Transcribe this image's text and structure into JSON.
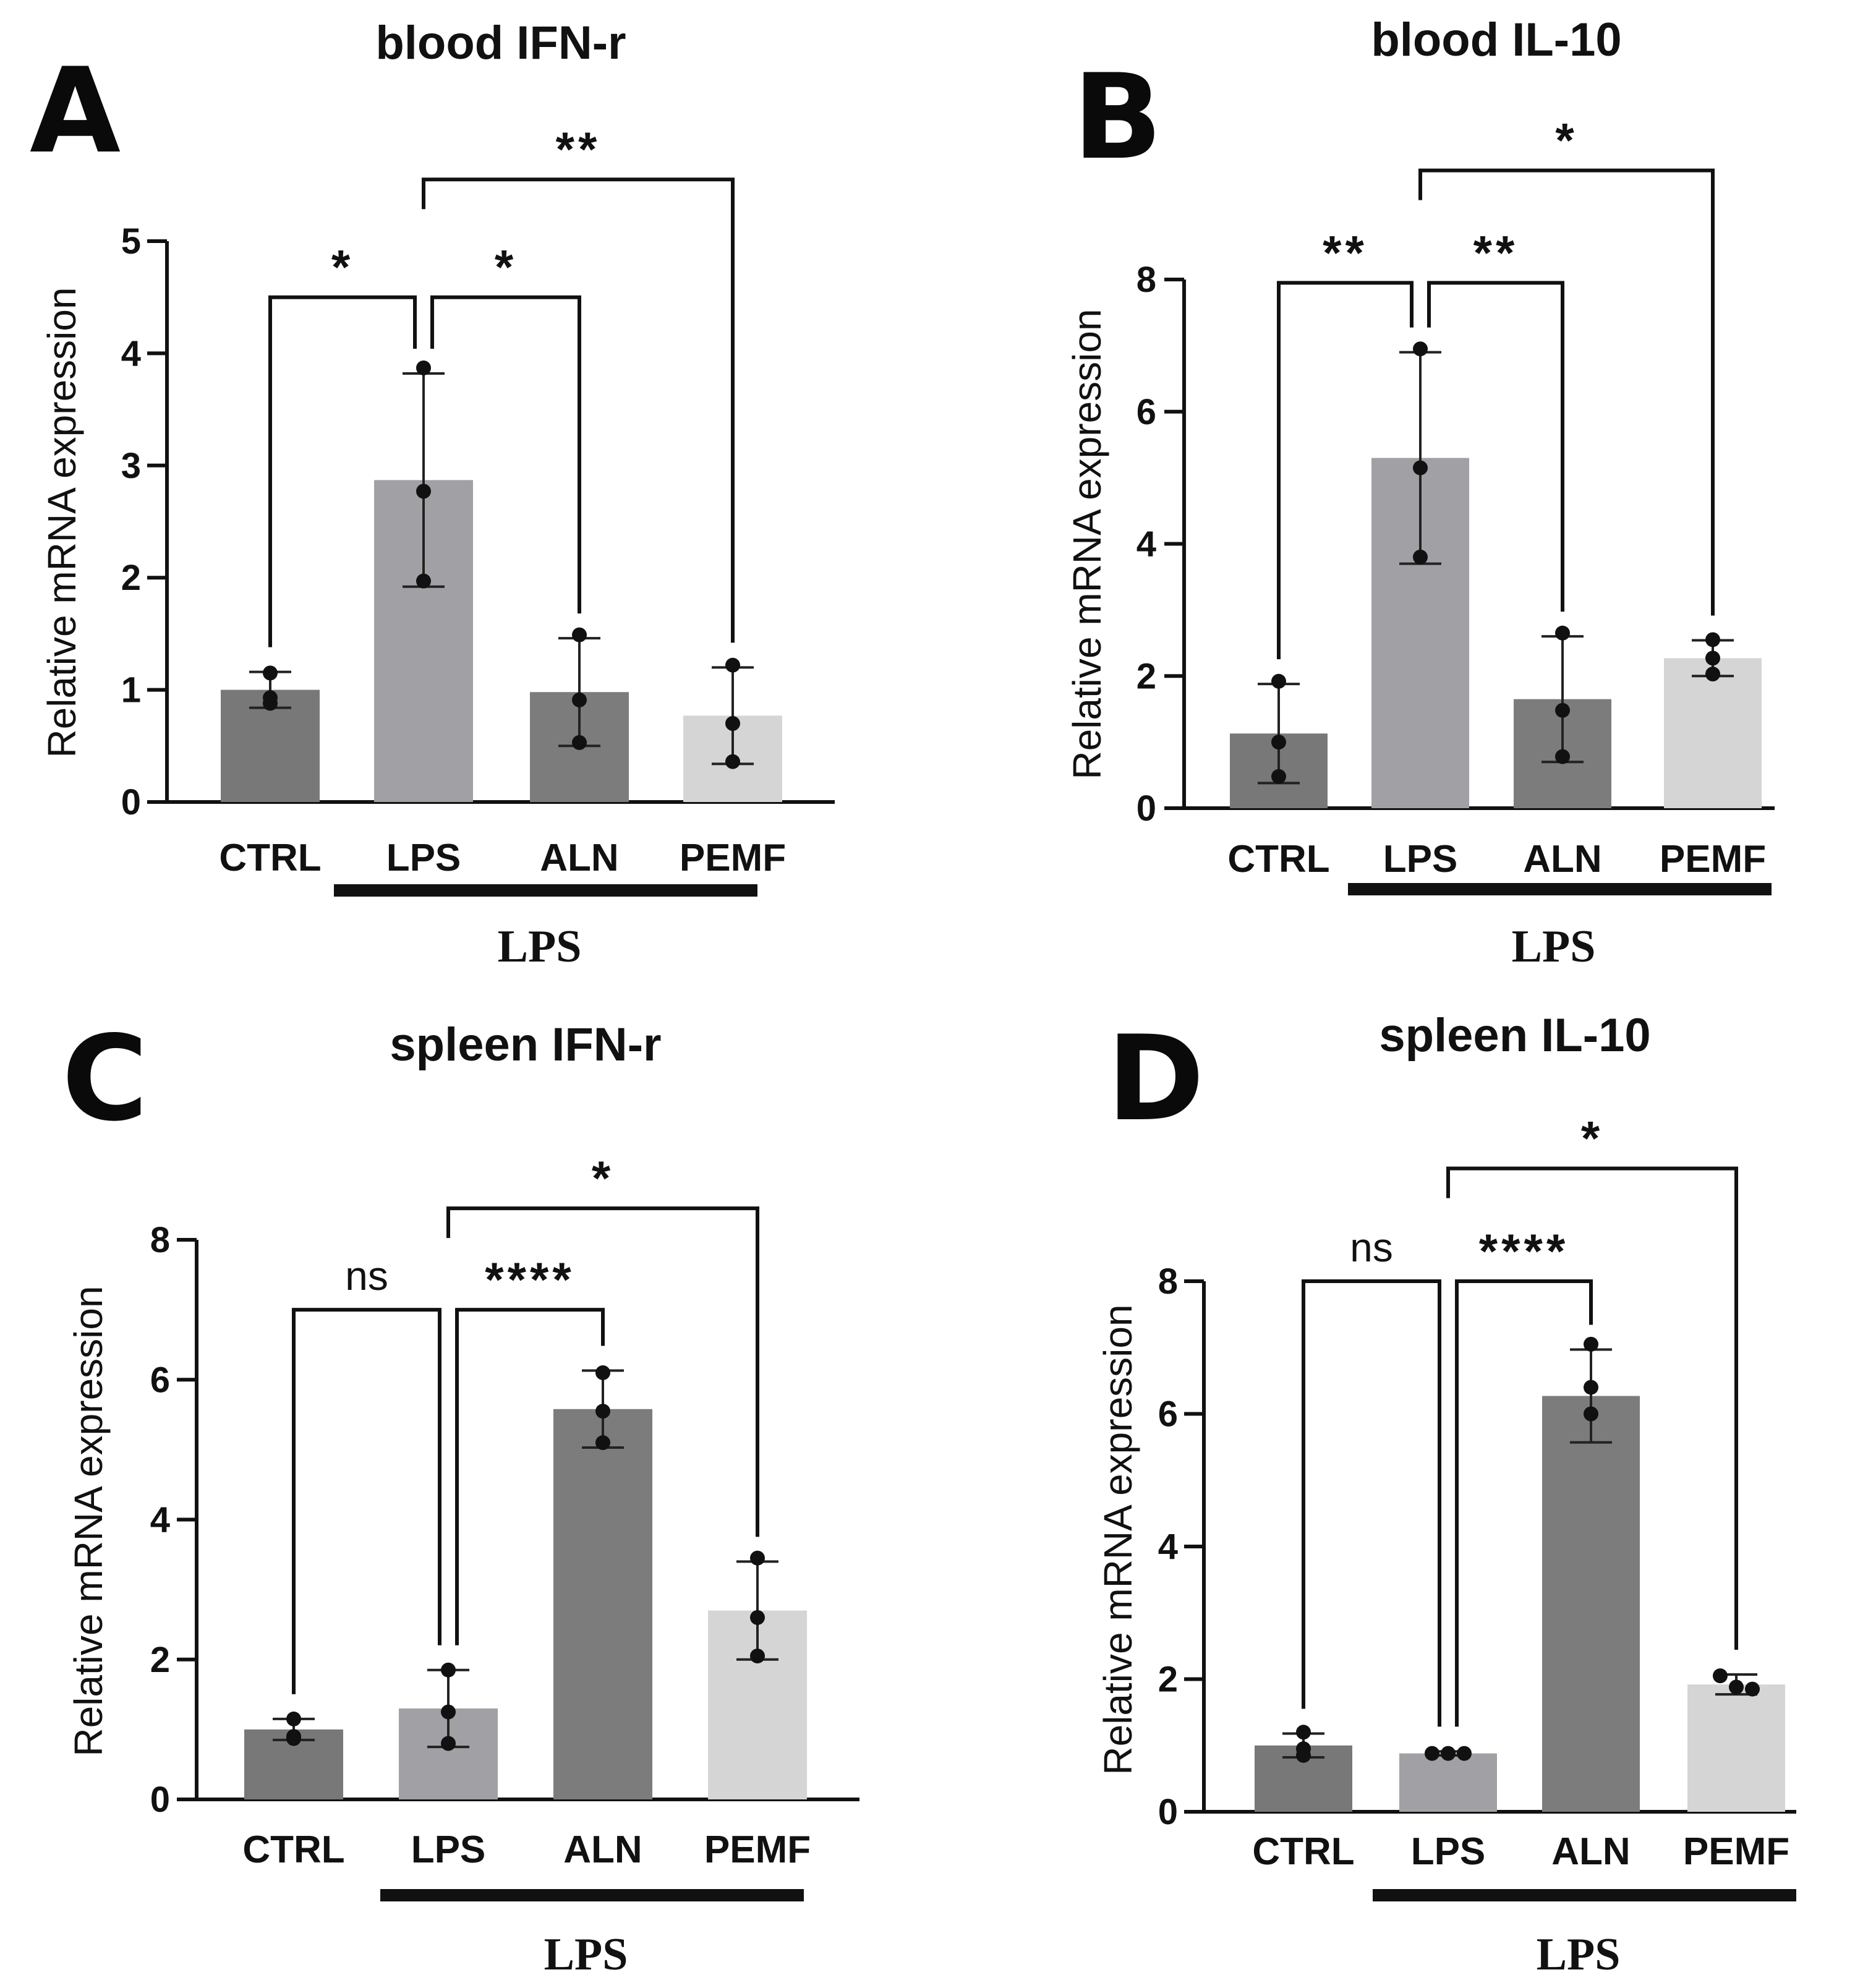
{
  "figure": {
    "y_axis_label": "Relative mRNA expression",
    "group_label": "LPS"
  },
  "chart_data": [
    {
      "type": "bar",
      "panel": "A",
      "title": "blood IFN-r",
      "xlabel": "",
      "ylabel": "Relative mRNA expression",
      "ylim": [
        0,
        5
      ],
      "yticks": [
        0,
        1,
        2,
        3,
        4,
        5
      ],
      "categories": [
        "CTRL",
        "LPS",
        "ALN",
        "PEMF"
      ],
      "values": [
        1.0,
        2.87,
        0.98,
        0.77
      ],
      "sd": [
        0.16,
        0.95,
        0.48,
        0.43
      ],
      "points": [
        [
          1.15,
          0.93,
          0.88
        ],
        [
          3.87,
          2.77,
          1.97
        ],
        [
          1.49,
          0.91,
          0.53
        ],
        [
          1.22,
          0.7,
          0.36
        ]
      ],
      "colors": [
        "#787878",
        "#a1a1a5",
        "#7c7c7c",
        "#d5d5d5"
      ],
      "group_label": "LPS",
      "comparisons": [
        {
          "from": "CTRL",
          "to": "LPS",
          "label": "*",
          "level": 4.5
        },
        {
          "from": "LPS",
          "to": "ALN",
          "label": "*",
          "level": 4.5
        },
        {
          "from": "LPS",
          "to": "PEMF",
          "label": "**",
          "level": 5.55
        }
      ]
    },
    {
      "type": "bar",
      "panel": "B",
      "title": "blood IL-10",
      "xlabel": "",
      "ylabel": "Relative mRNA expression",
      "ylim": [
        0,
        8
      ],
      "yticks": [
        0,
        2,
        4,
        6,
        8
      ],
      "categories": [
        "CTRL",
        "LPS",
        "ALN",
        "PEMF"
      ],
      "values": [
        1.13,
        5.3,
        1.65,
        2.27
      ],
      "sd": [
        0.75,
        1.6,
        0.95,
        0.27
      ],
      "points": [
        [
          1.92,
          1.0,
          0.48
        ],
        [
          6.95,
          5.15,
          3.8
        ],
        [
          2.65,
          1.48,
          0.78
        ],
        [
          2.55,
          2.27,
          2.03
        ]
      ],
      "colors": [
        "#787878",
        "#a1a1a5",
        "#7c7c7c",
        "#d5d5d5"
      ],
      "group_label": "LPS",
      "comparisons": [
        {
          "from": "CTRL",
          "to": "LPS",
          "label": "**",
          "level": 7.95
        },
        {
          "from": "LPS",
          "to": "ALN",
          "label": "**",
          "level": 7.95
        },
        {
          "from": "LPS",
          "to": "PEMF",
          "label": "*",
          "level": 9.65
        }
      ]
    },
    {
      "type": "bar",
      "panel": "C",
      "title": "spleen IFN-r",
      "xlabel": "",
      "ylabel": "Relative mRNA expression",
      "ylim": [
        0,
        8
      ],
      "yticks": [
        0,
        2,
        4,
        6,
        8
      ],
      "categories": [
        "CTRL",
        "LPS",
        "ALN",
        "PEMF"
      ],
      "values": [
        1.0,
        1.3,
        5.58,
        2.7
      ],
      "sd": [
        0.15,
        0.55,
        0.55,
        0.7
      ],
      "points": [
        [
          1.15,
          0.9,
          0.87
        ],
        [
          1.85,
          1.25,
          0.8
        ],
        [
          6.1,
          5.55,
          5.1
        ],
        [
          3.45,
          2.6,
          2.05
        ]
      ],
      "colors": [
        "#787878",
        "#a1a1a5",
        "#7c7c7c",
        "#d5d5d5"
      ],
      "group_label": "LPS",
      "comparisons": [
        {
          "from": "CTRL",
          "to": "LPS",
          "label": "ns",
          "level": 7.0
        },
        {
          "from": "LPS",
          "to": "ALN",
          "label": "****",
          "level": 7.0
        },
        {
          "from": "LPS",
          "to": "PEMF",
          "label": "*",
          "level": 8.45
        }
      ]
    },
    {
      "type": "bar",
      "panel": "D",
      "title": "spleen IL-10",
      "xlabel": "",
      "ylabel": "Relative mRNA expression",
      "ylim": [
        0,
        8
      ],
      "yticks": [
        0,
        2,
        4,
        6,
        8
      ],
      "categories": [
        "CTRL",
        "LPS",
        "ALN",
        "PEMF"
      ],
      "values": [
        1.0,
        0.88,
        6.27,
        1.92
      ],
      "sd": [
        0.18,
        0.03,
        0.7,
        0.15
      ],
      "points": [
        [
          1.2,
          0.95,
          0.85
        ],
        [
          0.88,
          0.88,
          0.88
        ],
        [
          7.05,
          6.4,
          6.0
        ],
        [
          2.05,
          1.88,
          1.85
        ]
      ],
      "colors": [
        "#787878",
        "#a1a1a5",
        "#7c7c7c",
        "#d5d5d5"
      ],
      "group_label": "LPS",
      "comparisons": [
        {
          "from": "CTRL",
          "to": "LPS",
          "label": "ns",
          "level": 8.0
        },
        {
          "from": "LPS",
          "to": "ALN",
          "label": "****",
          "level": 8.0
        },
        {
          "from": "LPS",
          "to": "PEMF",
          "label": "*",
          "level": 9.7
        }
      ]
    }
  ]
}
